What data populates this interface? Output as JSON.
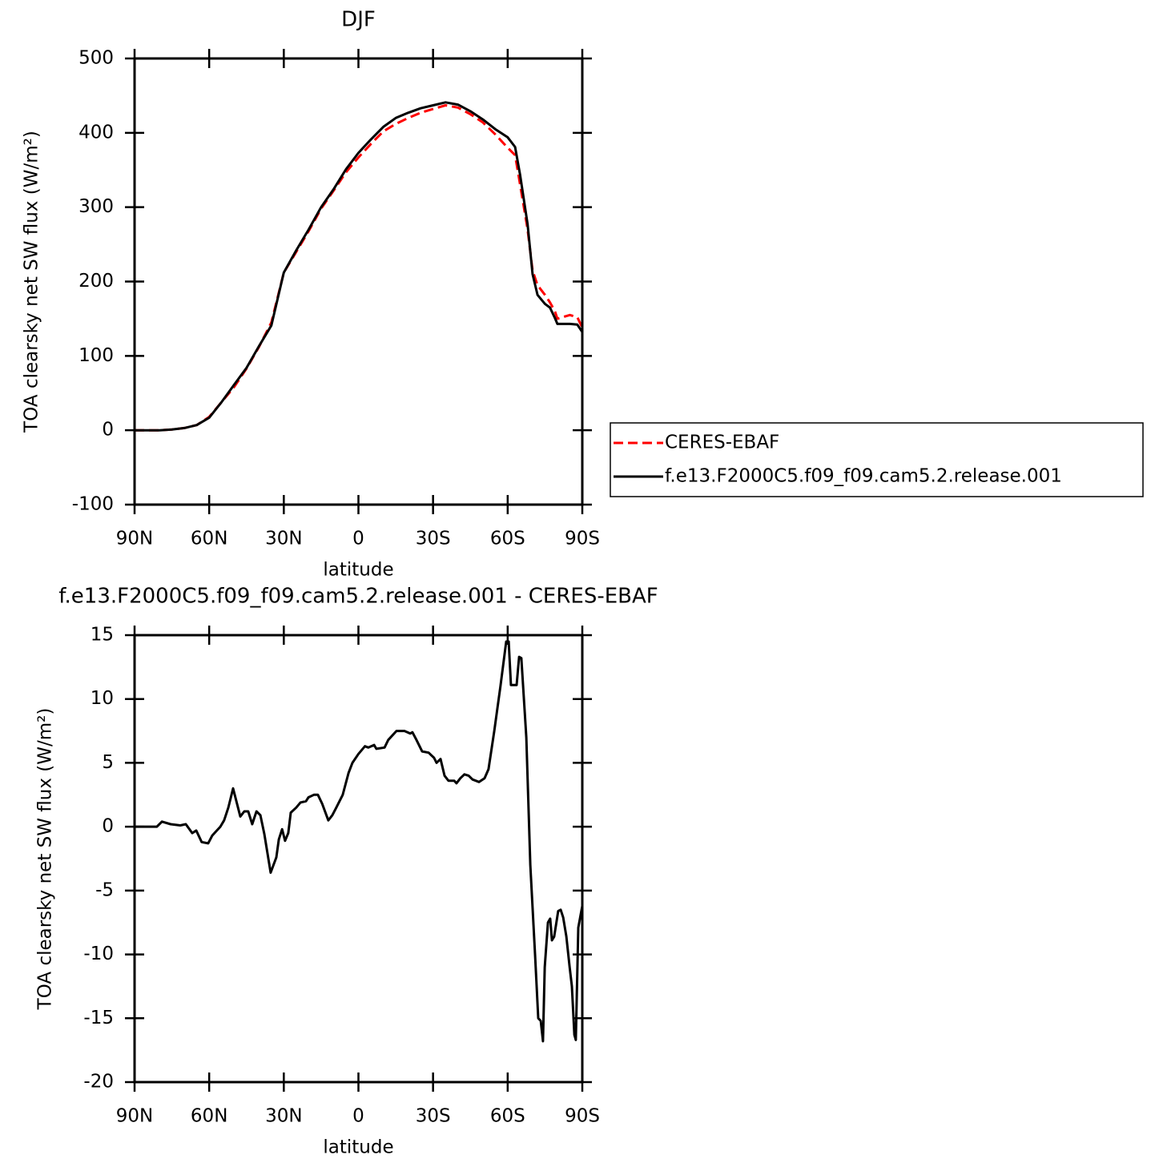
{
  "chart_data": [
    {
      "type": "line",
      "title": "DJF",
      "x_label": "latitude",
      "y_label": "TOA clearsky net SW flux (W/m²)",
      "x": [
        90,
        85,
        80,
        75,
        70,
        65,
        60,
        55,
        50,
        45,
        40,
        35,
        30,
        25,
        20,
        15,
        10,
        5,
        0,
        -5,
        -10,
        -15,
        -20,
        -25,
        -30,
        -35,
        -40,
        -45,
        -50,
        -55,
        -60,
        -63,
        -65,
        -68,
        -70,
        -72,
        -75,
        -77,
        -79,
        -80,
        -85,
        -88,
        -90
      ],
      "series": [
        {
          "name": "CERES-EBAF",
          "color": "#ff0000",
          "line_style": "dashed",
          "values": [
            0,
            0,
            0,
            1,
            3,
            7,
            18,
            38,
            58,
            83,
            112,
            145,
            212,
            240,
            268,
            298,
            322,
            347,
            367,
            385,
            402,
            412,
            420,
            427,
            432,
            437,
            434,
            425,
            414,
            398,
            380,
            370,
            330,
            270,
            215,
            195,
            182,
            172,
            160,
            150,
            155,
            152,
            138
          ]
        },
        {
          "name": "f.e13.F2000C5.f09_f09.cam5.2.release.001",
          "color": "#000000",
          "line_style": "solid",
          "values": [
            0,
            0,
            0,
            1,
            3,
            7,
            17,
            38,
            61,
            84,
            113,
            141,
            212,
            242,
            270,
            300,
            324,
            351,
            373,
            391,
            408,
            420,
            427,
            433,
            437,
            441,
            438,
            429,
            418,
            405,
            394,
            381,
            343,
            277,
            210,
            182,
            170,
            165,
            151,
            143,
            143,
            142,
            132
          ]
        }
      ],
      "xlim": [
        90,
        -90
      ],
      "xticks": [
        {
          "value": 90,
          "label": "90N"
        },
        {
          "value": 60,
          "label": "60N"
        },
        {
          "value": 30,
          "label": "30N"
        },
        0,
        {
          "value": -30,
          "label": "30S"
        },
        {
          "value": -60,
          "label": "60S"
        },
        {
          "value": -90,
          "label": "90S"
        }
      ],
      "ylim": [
        -100,
        500
      ],
      "yticks": [
        -100,
        0,
        100,
        200,
        300,
        400,
        500
      ],
      "legend": "outside-right"
    },
    {
      "type": "line",
      "title": "f.e13.F2000C5.f09_f09.cam5.2.release.001 - CERES-EBAF",
      "x_label": "latitude",
      "y_label": "TOA clearsky net SW flux (W/m²)",
      "x": [
        90,
        81,
        79,
        75.5,
        71.6,
        69.4,
        66.8,
        65.2,
        63,
        60.4,
        58.8,
        55.5,
        54,
        52.3,
        50.4,
        48.8,
        47.5,
        45.9,
        44.3,
        42.7,
        41,
        39.4,
        37.8,
        35.3,
        33,
        32,
        30.7,
        29.5,
        28.2,
        27.2,
        25,
        23.3,
        21.1,
        20.1,
        17.9,
        16.3,
        14.6,
        12.1,
        10.5,
        8.9,
        6.3,
        4,
        2.4,
        0,
        -2.6,
        -4,
        -6.3,
        -7.2,
        -10.5,
        -12,
        -15.3,
        -18.5,
        -20.8,
        -21.7,
        -23.3,
        -25.6,
        -28.2,
        -30.4,
        -31.4,
        -33,
        -34.6,
        -36.2,
        -38.5,
        -39.4,
        -41,
        -42.6,
        -44.3,
        -45.9,
        -48.5,
        -50.7,
        -52.3,
        -54.6,
        -57.1,
        -59.4,
        -60.4,
        -61.3,
        -63.6,
        -64.6,
        -65.5,
        -67.5,
        -69.1,
        -71,
        -72.3,
        -73.3,
        -74.2,
        -74.9,
        -76.2,
        -77.1,
        -77.8,
        -78.7,
        -80.3,
        -81.3,
        -82.3,
        -83.6,
        -84.9,
        -85.8,
        -86.8,
        -87.4,
        -88.4,
        -90
      ],
      "series": [
        {
          "name": null,
          "color": "#000000",
          "line_style": "solid",
          "values": [
            0,
            0,
            0.4,
            0.2,
            0.1,
            0.2,
            -0.5,
            -0.3,
            -1.2,
            -1.3,
            -0.7,
            0,
            0.5,
            1.5,
            3,
            1.8,
            0.8,
            1.2,
            1.2,
            0.2,
            1.2,
            0.9,
            -0.6,
            -3.6,
            -2.4,
            -1,
            -0.2,
            -1.1,
            -0.5,
            1.1,
            1.5,
            1.9,
            2,
            2.3,
            2.5,
            2.5,
            1.8,
            0.5,
            0.9,
            1.5,
            2.5,
            4.2,
            5,
            5.7,
            6.3,
            6.2,
            6.4,
            6.1,
            6.2,
            6.8,
            7.5,
            7.5,
            7.3,
            7.4,
            6.8,
            5.9,
            5.8,
            5.4,
            5,
            5.3,
            4,
            3.6,
            3.6,
            3.4,
            3.8,
            4.1,
            4,
            3.7,
            3.5,
            3.8,
            4.5,
            7.5,
            11,
            14.5,
            14.5,
            11.1,
            11.1,
            13.3,
            13.2,
            7,
            -3,
            -10,
            -15,
            -15.2,
            -16.8,
            -11,
            -7.5,
            -7.2,
            -8.9,
            -8.6,
            -6.6,
            -6.5,
            -7.1,
            -8.6,
            -11,
            -12.5,
            -16.3,
            -16.7,
            -7.9,
            -6.2
          ]
        }
      ],
      "xlim": [
        90,
        -90
      ],
      "xticks": [
        {
          "value": 90,
          "label": "90N"
        },
        {
          "value": 60,
          "label": "60N"
        },
        {
          "value": 30,
          "label": "30N"
        },
        0,
        {
          "value": -30,
          "label": "30S"
        },
        {
          "value": -60,
          "label": "60S"
        },
        {
          "value": -90,
          "label": "90S"
        }
      ],
      "ylim": [
        -20,
        15
      ],
      "yticks": [
        -20,
        -15,
        -10,
        -5,
        0,
        5,
        10,
        15
      ]
    }
  ]
}
